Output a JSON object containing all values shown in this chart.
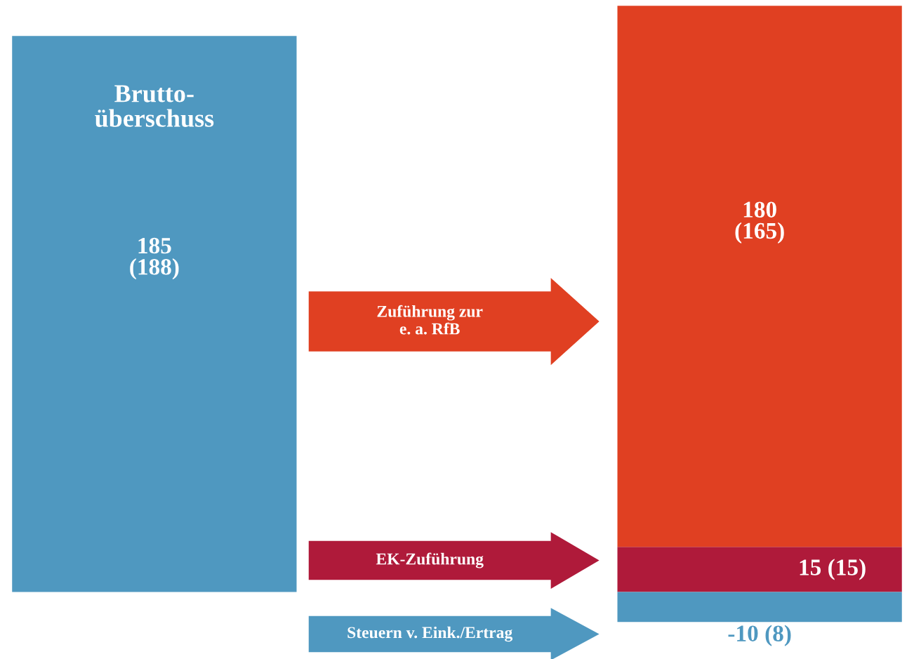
{
  "chart_data": {
    "type": "bar",
    "stacked": true,
    "categories": [
      null,
      null
    ],
    "series": [
      {
        "name": "Brutto-\nüberschuss",
        "color": "#4f98c0",
        "values": [
          185,
          null
        ],
        "value_labels": [
          "185\n(188)",
          null
        ]
      },
      {
        "color": "#af1a3a",
        "values": [
          null,
          15
        ],
        "value_labels": [
          null,
          "15 (15)"
        ]
      },
      {
        "color": "#e04022",
        "values": [
          null,
          180
        ],
        "value_labels": [
          null,
          "180\n(165)"
        ]
      },
      {
        "color": "#4f98c0",
        "values": [
          null,
          -10
        ],
        "value_labels": [
          null,
          "-10 (8)"
        ]
      }
    ],
    "annotations": [
      "EK-Zuführung",
      "Zuführung zur\ne. a. RfB",
      "Steuern v. Eink./Ertrag"
    ],
    "legend": false
  }
}
